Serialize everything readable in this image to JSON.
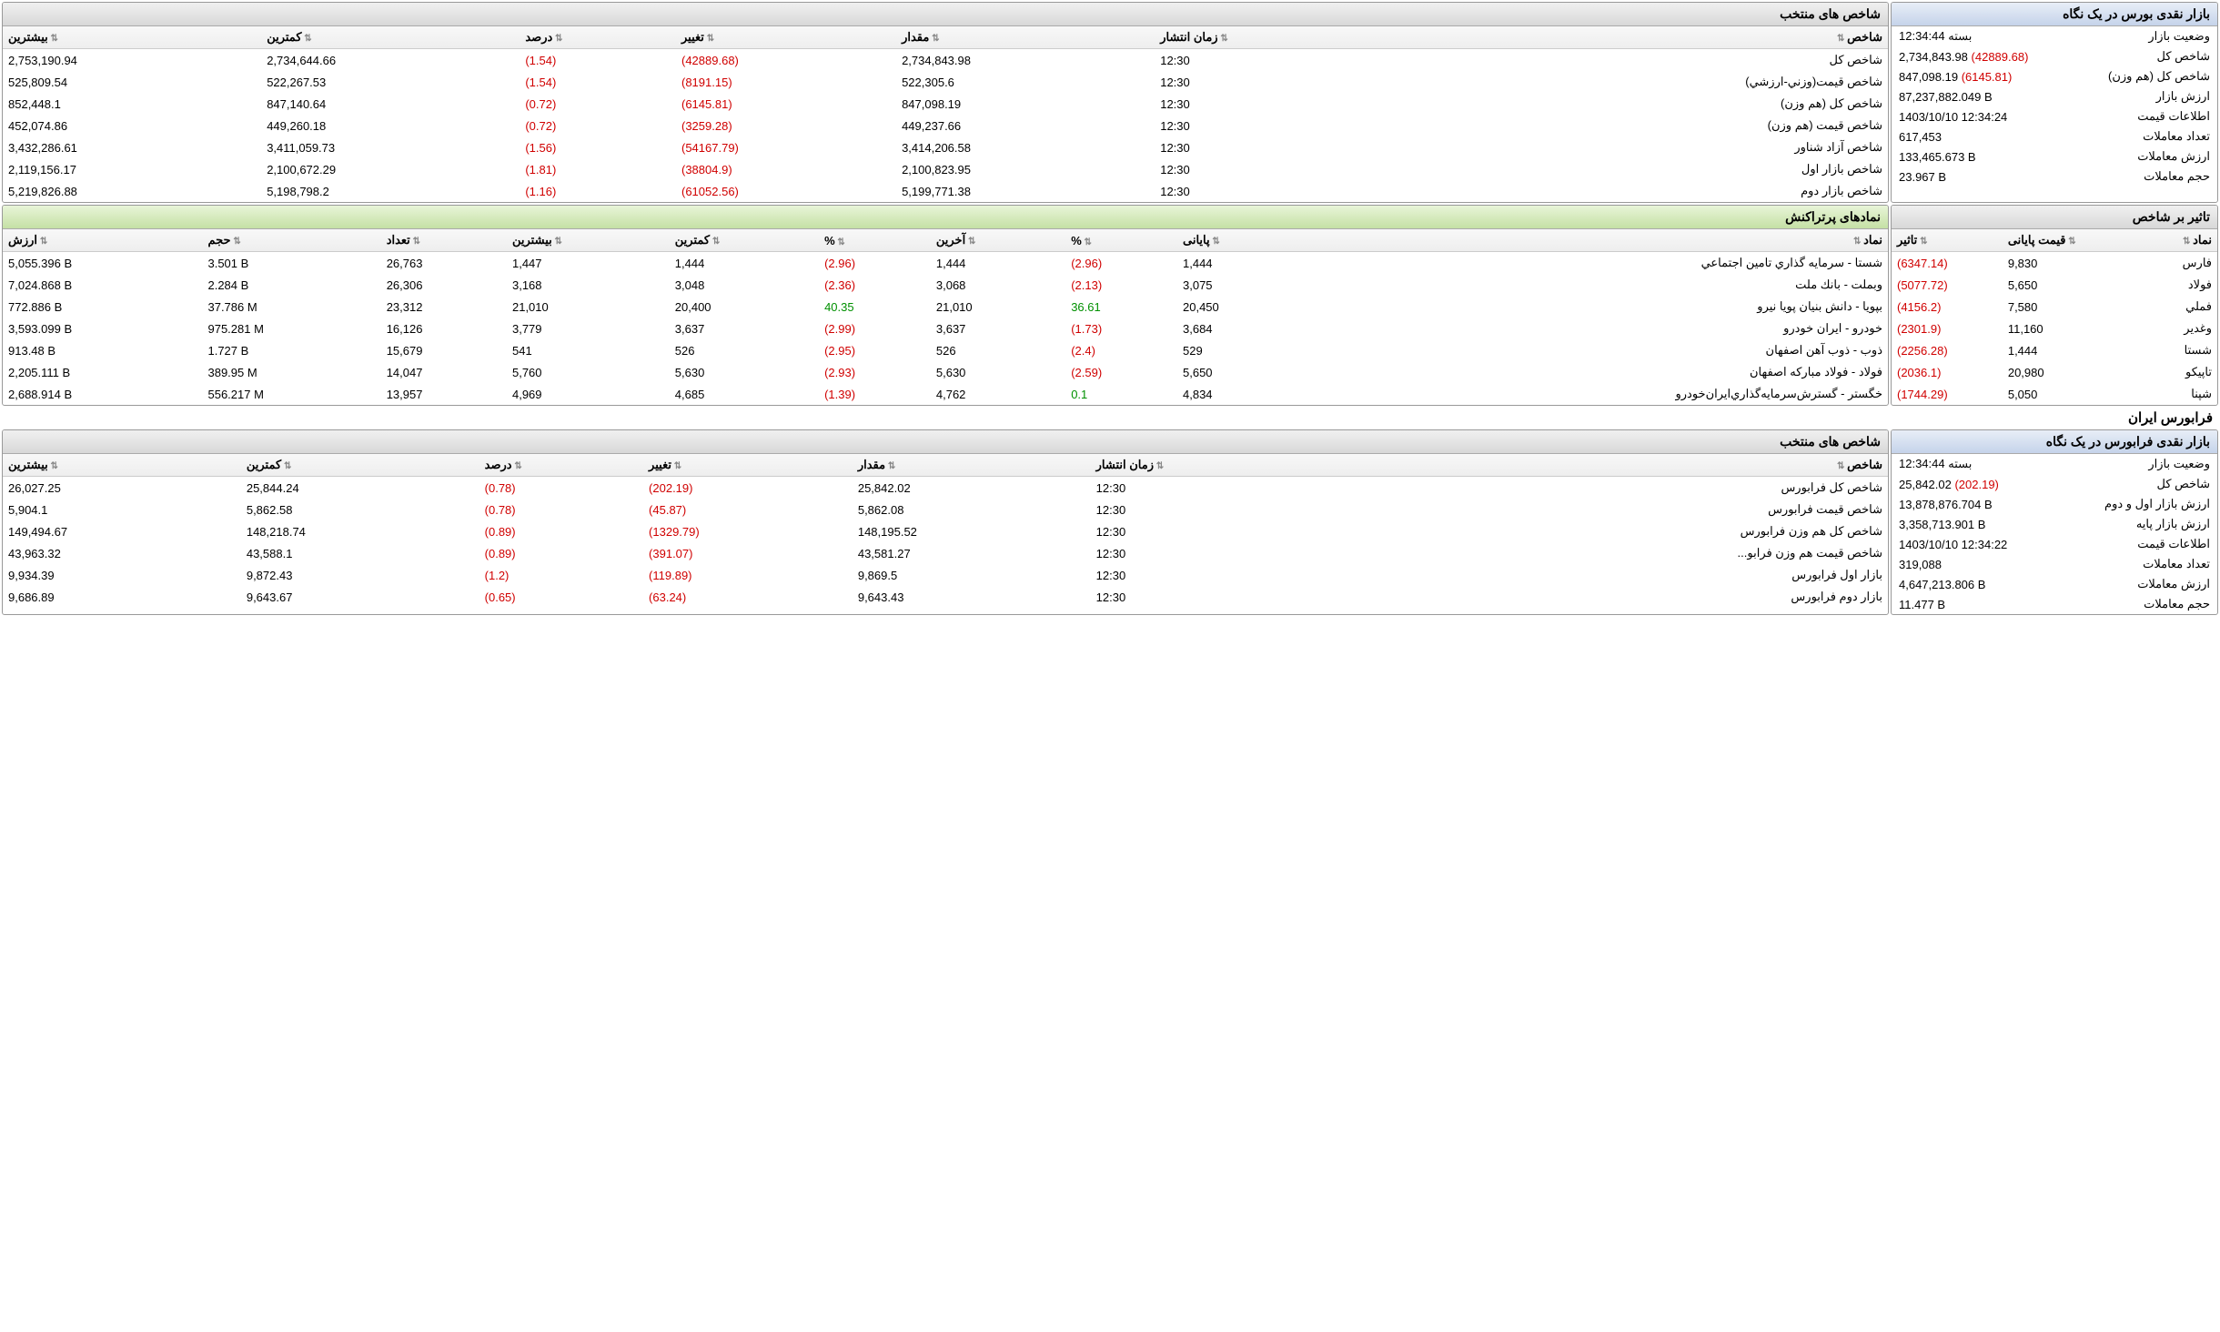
{
  "sections": {
    "bourse_title": "",
    "farabourse_title": "فرابورس ايران"
  },
  "glance1": {
    "title": "بازار نقدی بورس در یک نگاه",
    "rows": [
      {
        "label": "وضعیت بازار",
        "value": "بسته 12:34:44"
      },
      {
        "label": "شاخص کل",
        "value": "2,734,843.98",
        "delta": "(42889.68)",
        "neg": true
      },
      {
        "label": "شاخص كل (هم وزن)",
        "value": "847,098.19",
        "delta": "(6145.81)",
        "neg": true
      },
      {
        "label": "ارزش بازار",
        "value": "87,237,882.049 B"
      },
      {
        "label": "اطلاعات قیمت",
        "value": "1403/10/10 12:34:24"
      },
      {
        "label": "تعداد معاملات",
        "value": "617,453"
      },
      {
        "label": "ارزش معاملات",
        "value": "133,465.673 B"
      },
      {
        "label": "حجم معاملات",
        "value": "23.967 B"
      }
    ]
  },
  "indices1": {
    "title": "شاخص های منتخب",
    "columns": [
      "شاخص",
      "زمان انتشار",
      "مقدار",
      "تغییر",
      "درصد",
      "کمترین",
      "بیشترین"
    ],
    "rows": [
      [
        "شاخص كل",
        "12:30",
        "2,734,843.98",
        "(42889.68)",
        "(1.54)",
        "2,734,644.66",
        "2,753,190.94"
      ],
      [
        "شاخص قيمت(وزني-ارزشي)",
        "12:30",
        "522,305.6",
        "(8191.15)",
        "(1.54)",
        "522,267.53",
        "525,809.54"
      ],
      [
        "شاخص كل (هم وزن)",
        "12:30",
        "847,098.19",
        "(6145.81)",
        "(0.72)",
        "847,140.64",
        "852,448.1"
      ],
      [
        "شاخص قيمت (هم وزن)",
        "12:30",
        "449,237.66",
        "(3259.28)",
        "(0.72)",
        "449,260.18",
        "452,074.86"
      ],
      [
        "شاخص آزاد شناور",
        "12:30",
        "3,414,206.58",
        "(54167.79)",
        "(1.56)",
        "3,411,059.73",
        "3,432,286.61"
      ],
      [
        "شاخص بازار اول",
        "12:30",
        "2,100,823.95",
        "(38804.9)",
        "(1.81)",
        "2,100,672.29",
        "2,119,156.17"
      ],
      [
        "شاخص بازار دوم",
        "12:30",
        "5,199,771.38",
        "(61052.56)",
        "(1.16)",
        "5,198,798.2",
        "5,219,826.88"
      ]
    ]
  },
  "effect": {
    "title": "تاثیر بر شاخص",
    "columns": [
      "نماد",
      "قیمت پایانی",
      "تاثیر"
    ],
    "rows": [
      [
        "فارس",
        "9,830",
        "(6347.14)"
      ],
      [
        "فولاد",
        "5,650",
        "(5077.72)"
      ],
      [
        "فملي",
        "7,580",
        "(4156.2)"
      ],
      [
        "وغدير",
        "11,160",
        "(2301.9)"
      ],
      [
        "شستا",
        "1,444",
        "(2256.28)"
      ],
      [
        "تاپيكو",
        "20,980",
        "(2036.1)"
      ],
      [
        "شپنا",
        "5,050",
        "(1744.29)"
      ]
    ]
  },
  "top": {
    "title": "نمادهای پرتراکنش",
    "columns": [
      "نماد",
      "پایانی",
      "%",
      "آخرین",
      "%",
      "کمترین",
      "بیشترین",
      "تعداد",
      "حجم",
      "ارزش"
    ],
    "rows": [
      [
        "شستا - سرمايه گذاري تامين اجتماعي",
        "1,444",
        "(2.96)",
        "1,444",
        "(2.96)",
        "1,444",
        "1,447",
        "26,763",
        "3.501 B",
        "5,055.396 B"
      ],
      [
        "وبملت - بانك ملت",
        "3,075",
        "(2.13)",
        "3,068",
        "(2.36)",
        "3,048",
        "3,168",
        "26,306",
        "2.284 B",
        "7,024.868 B"
      ],
      [
        "بپويا - دانش بنيان پويا نيرو",
        "20,450",
        "36.61",
        "21,010",
        "40.35",
        "20,400",
        "21,010",
        "23,312",
        "37.786 M",
        "772.886 B"
      ],
      [
        "خودرو - ايران‌ خودرو",
        "3,684",
        "(1.73)",
        "3,637",
        "(2.99)",
        "3,637",
        "3,779",
        "16,126",
        "975.281 M",
        "3,593.099 B"
      ],
      [
        "ذوب - ذوب آهن اصفهان",
        "529",
        "(2.4)",
        "526",
        "(2.95)",
        "526",
        "541",
        "15,679",
        "1.727 B",
        "913.48 B"
      ],
      [
        "فولاد - فولاد مباركه اصفهان",
        "5,650",
        "(2.59)",
        "5,630",
        "(2.93)",
        "5,630",
        "5,760",
        "14,047",
        "389.95 M",
        "2,205.111 B"
      ],
      [
        "خگستر - گسترش‌سرمايه‌گذاري‌ايران‌خودرو",
        "4,834",
        "0.1",
        "4,762",
        "(1.39)",
        "4,685",
        "4,969",
        "13,957",
        "556.217 M",
        "2,688.914 B"
      ]
    ],
    "pctPos": {
      "2": [
        2,
        4
      ],
      "6": [
        2
      ]
    }
  },
  "glance2": {
    "title": "بازار نقدی فرابورس در یک نگاه",
    "rows": [
      {
        "label": "وضعیت بازار",
        "value": "بسته 12:34:44"
      },
      {
        "label": "شاخص کل",
        "value": "25,842.02",
        "delta": "(202.19)",
        "neg": true
      },
      {
        "label": "ارزش بازار اول و دوم",
        "value": "13,878,876.704 B"
      },
      {
        "label": "ارزش بازار پایه",
        "value": "3,358,713.901 B"
      },
      {
        "label": "اطلاعات قیمت",
        "value": "1403/10/10 12:34:22"
      },
      {
        "label": "تعداد معاملات",
        "value": "319,088"
      },
      {
        "label": "ارزش معاملات",
        "value": "4,647,213.806 B"
      },
      {
        "label": "حجم معاملات",
        "value": "11.477 B"
      }
    ]
  },
  "indices2": {
    "title": "شاخص های منتخب",
    "columns": [
      "شاخص",
      "زمان انتشار",
      "مقدار",
      "تغییر",
      "درصد",
      "کمترین",
      "بیشترین"
    ],
    "rows": [
      [
        "شاخص كل فرابورس",
        "12:30",
        "25,842.02",
        "(202.19)",
        "(0.78)",
        "25,844.24",
        "26,027.25"
      ],
      [
        "شاخص قيمت فرابورس",
        "12:30",
        "5,862.08",
        "(45.87)",
        "(0.78)",
        "5,862.58",
        "5,904.1"
      ],
      [
        "شاخص كل هم وزن فرابورس",
        "12:30",
        "148,195.52",
        "(1329.79)",
        "(0.89)",
        "148,218.74",
        "149,494.67"
      ],
      [
        "شاخص قيمت هم وزن فرابو...",
        "12:30",
        "43,581.27",
        "(391.07)",
        "(0.89)",
        "43,588.1",
        "43,963.32"
      ],
      [
        "بازار اول فرابورس",
        "12:30",
        "9,869.5",
        "(119.89)",
        "(1.2)",
        "9,872.43",
        "9,934.39"
      ],
      [
        "بازار دوم فرابورس",
        "12:30",
        "9,643.43",
        "(63.24)",
        "(0.65)",
        "9,643.67",
        "9,686.89"
      ]
    ]
  }
}
